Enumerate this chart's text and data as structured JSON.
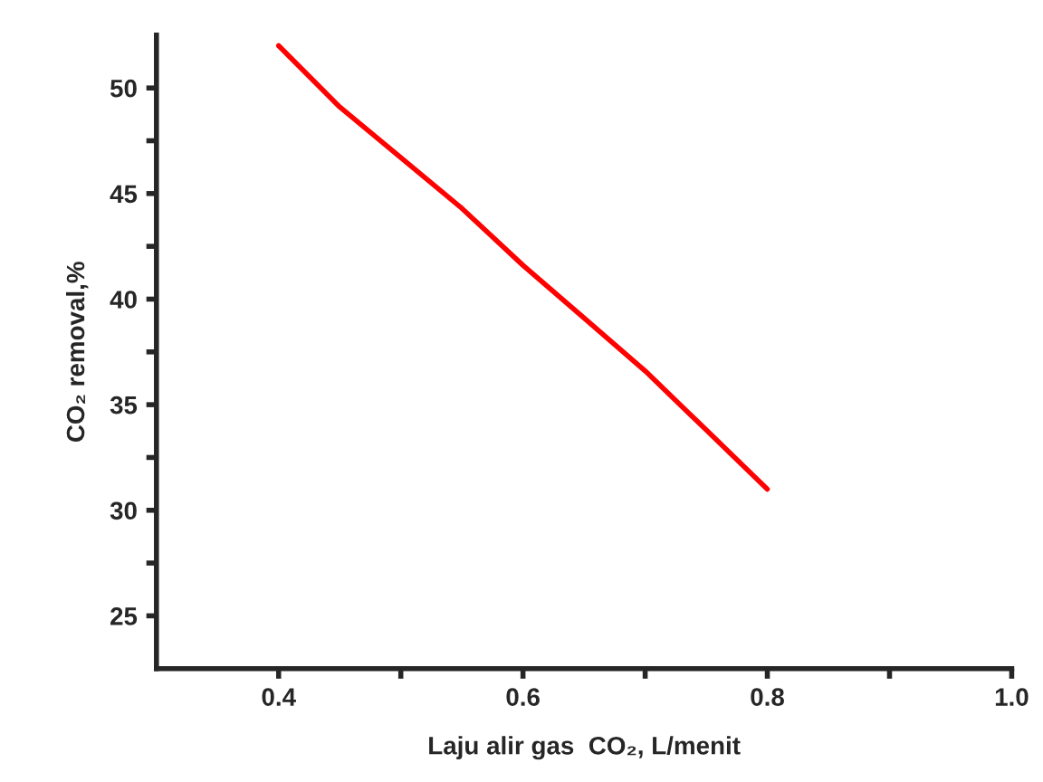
{
  "chart_data": {
    "type": "line",
    "xlabel": "Laju alir gas  CO₂, L/menit",
    "ylabel": "CO₂ removal,%",
    "x": [
      0.4,
      0.45,
      0.5,
      0.55,
      0.6,
      0.65,
      0.7,
      0.75,
      0.8
    ],
    "series": [
      {
        "color": "#ff0000",
        "values": [
          52,
          49.1,
          46.7,
          44.3,
          41.6,
          39.1,
          36.6,
          33.8,
          31
        ]
      }
    ],
    "xlim": [
      0.3,
      1.0
    ],
    "xticks": [
      0.4,
      {
        "value": 0.5,
        "label": null
      },
      0.6,
      {
        "value": 0.7,
        "label": null
      },
      0.8,
      {
        "value": 0.9,
        "label": null
      },
      {
        "value": 1.0,
        "label": "1.0"
      }
    ],
    "ylim": [
      22.5,
      52.5
    ],
    "yticks": [
      25,
      {
        "value": 27.5,
        "label": null
      },
      30,
      {
        "value": 32.5,
        "label": null
      },
      35,
      {
        "value": 37.5,
        "label": null
      },
      40,
      {
        "value": 42.5,
        "label": null
      },
      45,
      {
        "value": 47.5,
        "label": null
      },
      50
    ],
    "grid": false,
    "legend": false,
    "marker": "none",
    "line_style": "solid"
  }
}
